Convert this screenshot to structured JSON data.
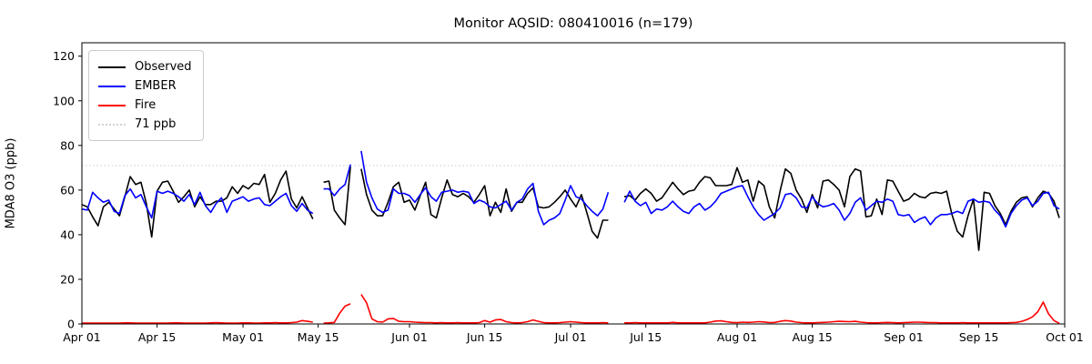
{
  "figure": {
    "title": "Monitor AQSID: 080410016 (n=179)",
    "ylabel": "MDA8 O3 (ppb)"
  },
  "legend": {
    "position": "upper left",
    "items": [
      {
        "label": "Observed",
        "color": "#000000",
        "style": "solid"
      },
      {
        "label": "EMBER",
        "color": "#0000ff",
        "style": "solid"
      },
      {
        "label": "Fire",
        "color": "#ff0000",
        "style": "solid"
      },
      {
        "label": "71 ppb",
        "color": "#d3d3d3",
        "style": "dotted"
      }
    ]
  },
  "chart_data": {
    "type": "line",
    "title": "Monitor AQSID: 080410016 (n=179)",
    "xlabel": "",
    "ylabel": "MDA8 O3 (ppb)",
    "n_points": 179,
    "grid": false,
    "legend_position": "upper left",
    "x_unit": "days since Apr 01",
    "x_tick_labels": [
      "Apr 01",
      "Apr 15",
      "May 01",
      "May 15",
      "Jun 01",
      "Jun 15",
      "Jul 01",
      "Jul 15",
      "Aug 01",
      "Aug 15",
      "Sep 01",
      "Sep 15",
      "Oct 01"
    ],
    "x_tick_days": [
      0,
      14,
      30,
      44,
      61,
      75,
      91,
      105,
      122,
      136,
      153,
      167,
      183
    ],
    "xlim_days": [
      0,
      183
    ],
    "ylim": [
      0,
      126
    ],
    "y_ticks": [
      0,
      20,
      40,
      60,
      80,
      100,
      120
    ],
    "threshold_line": {
      "value": 71,
      "label": "71 ppb",
      "color": "#d3d3d3",
      "linestyle": "dotted"
    },
    "missing_dates": [
      "May 15",
      "May 22",
      "Jul 09",
      "Jul 10"
    ],
    "series": [
      {
        "name": "Observed",
        "color": "#000000",
        "values": [
          53.5,
          52.5,
          48,
          44,
          52.5,
          54.5,
          51.5,
          48.5,
          57,
          66,
          62.5,
          63.5,
          54,
          39,
          59.5,
          63.5,
          64,
          59.5,
          54.5,
          57,
          60,
          52.5,
          57,
          53.5,
          53.5,
          55,
          55,
          56.5,
          61.5,
          58.5,
          62,
          60.5,
          63,
          62.5,
          67,
          54.5,
          58.5,
          64.5,
          68.5,
          56,
          52,
          57,
          52,
          47,
          null,
          63.5,
          64,
          51,
          47.5,
          44.5,
          70.5,
          null,
          69.5,
          58,
          51,
          48.5,
          48.5,
          54.5,
          61.5,
          63.5,
          54.5,
          55.5,
          51,
          57.5,
          63.5,
          49,
          47.5,
          56.5,
          64.5,
          58,
          57,
          58.5,
          57,
          54.5,
          58,
          62,
          48.5,
          54.5,
          50,
          60.5,
          50.5,
          54.5,
          54.5,
          58.5,
          61,
          52.5,
          52,
          52.5,
          54.5,
          57,
          60,
          56,
          52.5,
          58,
          50,
          41.5,
          38.5,
          46.5,
          46.5,
          null,
          null,
          57,
          57.5,
          55.5,
          58.5,
          60.5,
          58.5,
          55,
          56.5,
          60,
          63.5,
          60.5,
          58,
          59.5,
          60,
          63.5,
          66,
          65.5,
          62,
          62,
          62,
          62.5,
          70,
          63.5,
          64.5,
          55,
          64,
          62,
          52.5,
          47.5,
          59.5,
          69.5,
          67.5,
          60,
          56,
          50,
          58,
          52,
          64,
          64.5,
          62.5,
          60,
          52.5,
          66,
          69.5,
          68.5,
          48,
          48.5,
          56,
          49,
          64.5,
          64,
          59.5,
          55,
          56,
          58.5,
          57,
          56.5,
          58.5,
          59,
          58.5,
          59.5,
          49,
          41.5,
          39,
          48.5,
          56,
          33,
          59,
          58.5,
          53,
          49.5,
          44.5,
          50.5,
          54.5,
          56.5,
          57,
          52.5,
          56.5,
          59.5,
          58.5,
          55,
          47.5
        ]
      },
      {
        "name": "EMBER",
        "color": "#0000ff",
        "values": [
          51.5,
          51,
          59,
          56.5,
          54.5,
          55.5,
          50.5,
          49.5,
          57.5,
          60.5,
          56.5,
          58,
          52.5,
          47.5,
          59.5,
          58.5,
          59.5,
          58.5,
          57,
          55,
          58,
          53.5,
          59,
          53,
          50,
          54,
          56.5,
          50,
          55,
          56,
          57,
          55,
          56,
          56.5,
          53.5,
          53,
          55,
          57,
          58.5,
          53,
          50.5,
          54,
          51,
          49.5,
          null,
          60.5,
          60.5,
          57.5,
          60.5,
          62.5,
          71.5,
          null,
          77.5,
          63.5,
          56.5,
          51.5,
          50,
          51,
          60.5,
          58.5,
          58.5,
          57.5,
          54.5,
          58,
          61,
          57,
          55,
          59,
          59.5,
          60,
          59,
          59.5,
          59,
          54,
          55.5,
          54.5,
          52.5,
          52,
          53.5,
          55,
          51,
          54.5,
          56,
          60.5,
          63,
          50.5,
          44.5,
          46.5,
          47.5,
          49.5,
          55.5,
          62,
          57,
          56,
          53,
          50.5,
          48.5,
          51.5,
          59,
          null,
          null,
          54.5,
          59.5,
          55,
          53,
          54.5,
          49.5,
          51.5,
          51,
          52.5,
          55,
          52.5,
          50.5,
          49.5,
          52.5,
          54,
          51,
          52.5,
          55,
          58.5,
          59.5,
          60.5,
          61.5,
          62,
          57,
          52.5,
          49,
          46.5,
          48,
          49.5,
          52,
          58,
          58.5,
          56.5,
          52.5,
          52,
          57,
          54,
          52.5,
          53,
          54,
          51,
          46.5,
          49.5,
          54.5,
          56.5,
          51,
          53,
          55,
          54.5,
          56,
          55,
          49,
          48.5,
          49,
          45.5,
          47,
          48,
          44.5,
          47.5,
          49,
          49,
          49.5,
          50.5,
          49.5,
          55,
          56,
          54.5,
          55,
          54.5,
          51,
          48.5,
          43.5,
          49.5,
          53,
          55.5,
          56.5,
          53,
          55,
          58.5,
          59,
          53,
          51.5
        ]
      },
      {
        "name": "Fire",
        "color": "#ff0000",
        "values": [
          0.4,
          0.4,
          0.4,
          0.4,
          0.4,
          0.4,
          0.4,
          0.4,
          0.5,
          0.5,
          0.4,
          0.4,
          0.4,
          0.4,
          0.4,
          0.4,
          0.4,
          0.5,
          0.5,
          0.4,
          0.4,
          0.4,
          0.4,
          0.4,
          0.5,
          0.6,
          0.5,
          0.4,
          0.4,
          0.4,
          0.5,
          0.5,
          0.4,
          0.4,
          0.5,
          0.5,
          0.6,
          0.5,
          0.5,
          0.6,
          0.8,
          1.5,
          1.2,
          0.8,
          null,
          0.4,
          0.5,
          0.7,
          4.8,
          8,
          9,
          null,
          13.2,
          9.5,
          2.3,
          1,
          0.8,
          2.3,
          2.5,
          1.2,
          1,
          1,
          0.8,
          0.7,
          0.6,
          0.6,
          0.5,
          0.6,
          0.5,
          0.5,
          0.6,
          0.5,
          0.5,
          0.5,
          0.6,
          1.5,
          0.8,
          1.8,
          2,
          1,
          0.6,
          0.5,
          0.6,
          1,
          1.8,
          1.2,
          0.6,
          0.5,
          0.5,
          0.6,
          0.8,
          1,
          0.8,
          0.6,
          0.5,
          0.5,
          0.5,
          0.6,
          0.5,
          null,
          null,
          0.5,
          0.5,
          0.6,
          0.5,
          0.5,
          0.5,
          0.5,
          0.5,
          0.5,
          0.7,
          0.5,
          0.5,
          0.5,
          0.5,
          0.5,
          0.5,
          0.8,
          1.3,
          1.4,
          1,
          0.7,
          0.6,
          0.8,
          0.7,
          0.8,
          1,
          0.9,
          0.6,
          0.7,
          1.2,
          1.5,
          1.3,
          0.8,
          0.6,
          0.5,
          0.5,
          0.6,
          0.7,
          0.8,
          1,
          1.2,
          1.1,
          1,
          1.2,
          0.8,
          0.6,
          0.5,
          0.5,
          0.6,
          0.7,
          0.6,
          0.5,
          0.6,
          0.7,
          0.8,
          0.8,
          0.7,
          0.6,
          0.6,
          0.5,
          0.5,
          0.5,
          0.5,
          0.6,
          0.5,
          0.5,
          0.5,
          0.5,
          0.5,
          0.5,
          0.5,
          0.5,
          0.6,
          0.7,
          1.2,
          2,
          3.2,
          5.5,
          9.8,
          4.5,
          1.5,
          0.3
        ]
      }
    ]
  }
}
